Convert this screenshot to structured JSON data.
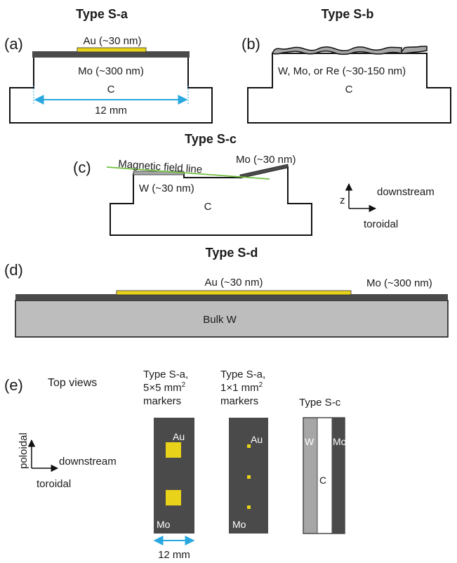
{
  "panels": {
    "a": {
      "letter": "(a)",
      "title": "Type S-a",
      "au_label": "Au (~30 nm)",
      "mo_label": "Mo (~300 nm)",
      "c_label": "C",
      "width_label": "12 mm"
    },
    "b": {
      "letter": "(b)",
      "title": "Type S-b",
      "film_label": "W, Mo, or Re (~30-150 nm)",
      "c_label": "C"
    },
    "c": {
      "letter": "(c)",
      "title": "Type S-c",
      "field_label": "Magnetic field line",
      "mo_label": "Mo (~30 nm)",
      "w_label": "W (~30 nm)",
      "c_label": "C",
      "axes": {
        "z": "z",
        "downstream": "downstream",
        "toroidal": "toroidal"
      }
    },
    "d": {
      "letter": "(d)",
      "title": "Type S-d",
      "au_label": "Au (~30 nm)",
      "mo_label": "Mo (~300 nm)",
      "bulk_label": "Bulk W"
    },
    "e": {
      "letter": "(e)",
      "title": "Top views",
      "axes": {
        "poloidal": "poloidal",
        "downstream": "downstream",
        "toroidal": "toroidal"
      },
      "view1": {
        "title_line1": "Type S-a,",
        "title_line2": "5×5 mm",
        "title_sup": "2",
        "title_line3": "markers",
        "au": "Au",
        "mo": "Mo",
        "width_label": "12 mm"
      },
      "view2": {
        "title_line1": "Type S-a,",
        "title_line2": "1×1 mm",
        "title_sup": "2",
        "title_line3": "markers",
        "au": "Au",
        "mo": "Mo"
      },
      "view3": {
        "title": "Type S-c",
        "w": "W",
        "c": "C",
        "mo": "Mo"
      }
    }
  },
  "colors": {
    "gold": "#e8d31a",
    "dark_gray": "#4a4a4a",
    "mid_gray": "#a6a6a6",
    "bulk_gray": "#bdbdbd",
    "field_green": "#72c040",
    "dimension_blue": "#29a8e0"
  }
}
